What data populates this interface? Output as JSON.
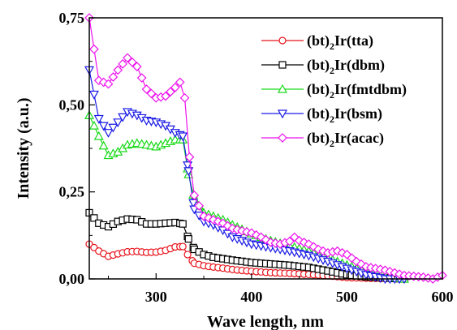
{
  "chart_data": {
    "type": "line",
    "xlabel": "Wave length, nm",
    "ylabel": "Intensity (a.u.)",
    "xlim": [
      230,
      600
    ],
    "ylim": [
      0,
      0.75
    ],
    "xticks": [
      300,
      400,
      500,
      600
    ],
    "xtick_labels": [
      "300",
      "400",
      "500",
      "600"
    ],
    "yticks": [
      0,
      0.25,
      0.5,
      0.75
    ],
    "ytick_labels": [
      "0,00",
      "0,25",
      "0,50",
      "0,75"
    ],
    "legend_position": "top-right",
    "series": [
      {
        "name": "(bt)2Ir(tta)",
        "legend": {
          "pre": "(bt)",
          "sub": "2",
          "post": "Ir(tta)"
        },
        "color": "#e8141c",
        "marker": "circle",
        "points": [
          [
            230,
            0.1
          ],
          [
            240,
            0.08
          ],
          [
            250,
            0.065
          ],
          [
            260,
            0.072
          ],
          [
            270,
            0.078
          ],
          [
            280,
            0.079
          ],
          [
            290,
            0.076
          ],
          [
            300,
            0.077
          ],
          [
            310,
            0.082
          ],
          [
            320,
            0.092
          ],
          [
            328,
            0.093
          ],
          [
            333,
            0.07
          ],
          [
            340,
            0.045
          ],
          [
            350,
            0.038
          ],
          [
            360,
            0.034
          ],
          [
            370,
            0.031
          ],
          [
            380,
            0.027
          ],
          [
            400,
            0.022
          ],
          [
            420,
            0.018
          ],
          [
            440,
            0.016
          ],
          [
            460,
            0.013
          ],
          [
            480,
            0.009
          ],
          [
            500,
            0.004
          ],
          [
            520,
            0.002
          ],
          [
            540,
            0.001
          ],
          [
            560,
            0.0
          ]
        ]
      },
      {
        "name": "(bt)2Ir(dbm)",
        "legend": {
          "pre": "(bt)",
          "sub": "2",
          "post": "Ir(dbm)"
        },
        "color": "#000000",
        "marker": "square",
        "points": [
          [
            230,
            0.19
          ],
          [
            240,
            0.16
          ],
          [
            250,
            0.15
          ],
          [
            260,
            0.165
          ],
          [
            270,
            0.172
          ],
          [
            280,
            0.17
          ],
          [
            290,
            0.158
          ],
          [
            300,
            0.158
          ],
          [
            310,
            0.16
          ],
          [
            320,
            0.162
          ],
          [
            328,
            0.158
          ],
          [
            334,
            0.115
          ],
          [
            340,
            0.085
          ],
          [
            350,
            0.07
          ],
          [
            360,
            0.062
          ],
          [
            370,
            0.058
          ],
          [
            380,
            0.054
          ],
          [
            400,
            0.047
          ],
          [
            420,
            0.043
          ],
          [
            440,
            0.039
          ],
          [
            460,
            0.033
          ],
          [
            480,
            0.023
          ],
          [
            500,
            0.012
          ],
          [
            520,
            0.006
          ],
          [
            540,
            0.003
          ],
          [
            560,
            0.0
          ]
        ]
      },
      {
        "name": "(bt)2Ir(fmtdbm)",
        "legend": {
          "pre": "(bt)",
          "sub": "2",
          "post": "Ir(fmtdbm)"
        },
        "color": "#19d919",
        "marker": "triangle-up",
        "points": [
          [
            230,
            0.47
          ],
          [
            240,
            0.41
          ],
          [
            250,
            0.355
          ],
          [
            260,
            0.365
          ],
          [
            270,
            0.385
          ],
          [
            280,
            0.39
          ],
          [
            290,
            0.385
          ],
          [
            300,
            0.38
          ],
          [
            310,
            0.39
          ],
          [
            320,
            0.4
          ],
          [
            328,
            0.4
          ],
          [
            334,
            0.3
          ],
          [
            340,
            0.23
          ],
          [
            350,
            0.19
          ],
          [
            360,
            0.18
          ],
          [
            370,
            0.17
          ],
          [
            380,
            0.155
          ],
          [
            400,
            0.13
          ],
          [
            420,
            0.11
          ],
          [
            440,
            0.095
          ],
          [
            460,
            0.08
          ],
          [
            480,
            0.06
          ],
          [
            500,
            0.04
          ],
          [
            520,
            0.022
          ],
          [
            540,
            0.008
          ],
          [
            560,
            0.0
          ]
        ]
      },
      {
        "name": "(bt)2Ir(bsm)",
        "legend": {
          "pre": "(bt)",
          "sub": "2",
          "post": "Ir(bsm)"
        },
        "color": "#1a1ae6",
        "marker": "triangle-down",
        "points": [
          [
            230,
            0.6
          ],
          [
            240,
            0.46
          ],
          [
            250,
            0.42
          ],
          [
            260,
            0.45
          ],
          [
            270,
            0.48
          ],
          [
            280,
            0.47
          ],
          [
            290,
            0.455
          ],
          [
            300,
            0.45
          ],
          [
            310,
            0.44
          ],
          [
            320,
            0.42
          ],
          [
            328,
            0.41
          ],
          [
            334,
            0.31
          ],
          [
            340,
            0.2
          ],
          [
            350,
            0.165
          ],
          [
            360,
            0.155
          ],
          [
            370,
            0.14
          ],
          [
            380,
            0.12
          ],
          [
            400,
            0.1
          ],
          [
            420,
            0.09
          ],
          [
            440,
            0.08
          ],
          [
            460,
            0.067
          ],
          [
            480,
            0.05
          ],
          [
            500,
            0.03
          ],
          [
            520,
            0.012
          ],
          [
            540,
            0.0
          ],
          [
            560,
            0.0
          ]
        ]
      },
      {
        "name": "(bt)2Ir(acac)",
        "legend": {
          "pre": "(bt)",
          "sub": "2",
          "post": "Ir(acac)"
        },
        "color": "#ee11ee",
        "marker": "diamond",
        "points": [
          [
            230,
            0.75
          ],
          [
            240,
            0.57
          ],
          [
            250,
            0.56
          ],
          [
            260,
            0.6
          ],
          [
            270,
            0.635
          ],
          [
            280,
            0.61
          ],
          [
            290,
            0.545
          ],
          [
            300,
            0.52
          ],
          [
            310,
            0.525
          ],
          [
            320,
            0.55
          ],
          [
            325,
            0.565
          ],
          [
            330,
            0.52
          ],
          [
            335,
            0.35
          ],
          [
            340,
            0.24
          ],
          [
            350,
            0.18
          ],
          [
            360,
            0.17
          ],
          [
            370,
            0.16
          ],
          [
            380,
            0.145
          ],
          [
            390,
            0.138
          ],
          [
            400,
            0.132
          ],
          [
            410,
            0.12
          ],
          [
            420,
            0.105
          ],
          [
            430,
            0.1
          ],
          [
            440,
            0.108
          ],
          [
            445,
            0.12
          ],
          [
            450,
            0.11
          ],
          [
            460,
            0.1
          ],
          [
            470,
            0.085
          ],
          [
            480,
            0.075
          ],
          [
            490,
            0.08
          ],
          [
            500,
            0.07
          ],
          [
            510,
            0.05
          ],
          [
            520,
            0.035
          ],
          [
            540,
            0.025
          ],
          [
            560,
            0.01
          ],
          [
            580,
            0.005
          ],
          [
            590,
            0.0
          ],
          [
            600,
            0.01
          ]
        ]
      }
    ]
  }
}
